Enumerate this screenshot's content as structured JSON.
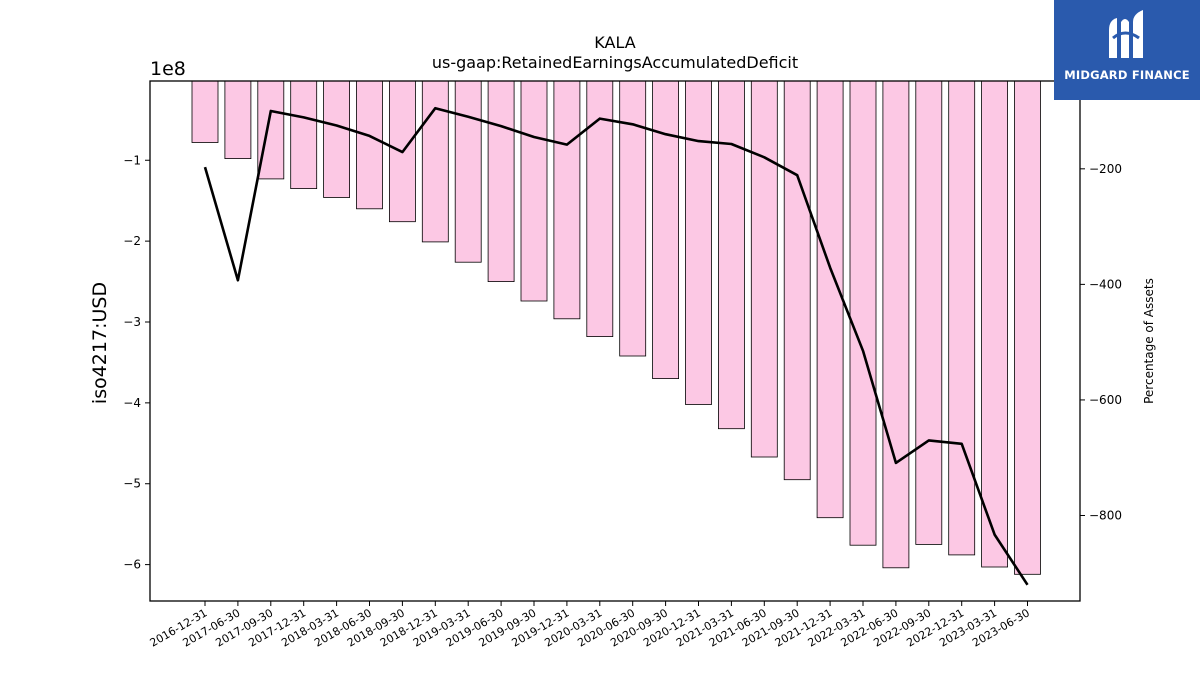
{
  "chart_data": {
    "type": "bar",
    "title": "KALA",
    "subtitle": "us-gaap:RetainedEarningsAccumulatedDeficit",
    "ylabel": "iso4217:USD",
    "y2label": "Percentage of Assets",
    "y_offset_label": "1e8",
    "categories": [
      "2016-12-31",
      "2017-06-30",
      "2017-09-30",
      "2017-12-31",
      "2018-03-31",
      "2018-06-30",
      "2018-09-30",
      "2018-12-31",
      "2019-03-31",
      "2019-06-30",
      "2019-09-30",
      "2019-12-31",
      "2020-03-31",
      "2020-06-30",
      "2020-09-30",
      "2020-12-31",
      "2021-03-31",
      "2021-06-30",
      "2021-09-30",
      "2021-12-31",
      "2022-03-31",
      "2022-06-30",
      "2022-09-30",
      "2022-12-31",
      "2023-03-31",
      "2023-06-30"
    ],
    "series": [
      {
        "axis": "left",
        "kind": "bar",
        "color": "#fcc8e4",
        "values": [
          -78000000.0,
          -98000000.0,
          -123000000.0,
          -135000000.0,
          -146000000.0,
          -160000000.0,
          -176000000.0,
          -201000000.0,
          -226000000.0,
          -250000000.0,
          -274000000.0,
          -296000000.0,
          -318000000.0,
          -342000000.0,
          -370000000.0,
          -402000000.0,
          -432000000.0,
          -467000000.0,
          -495000000.0,
          -542000000.0,
          -576000000.0,
          -604000000.0,
          -575000000.0,
          -588000000.0,
          -603000000.0,
          -612000000.0
        ]
      },
      {
        "axis": "right",
        "kind": "line",
        "color": "#000000",
        "values": [
          -197,
          -393,
          -100,
          -111,
          -125,
          -143,
          -171,
          -95,
          -110,
          -126,
          -145,
          -158,
          -113,
          -123,
          -140,
          -152,
          -157,
          -180,
          -211,
          -371,
          -515,
          -709,
          -670,
          -676,
          -833,
          -920
        ]
      }
    ],
    "ylim": [
      -645000000.0,
      -2000000.0
    ],
    "y_ticks": [
      -600000000.0,
      -500000000.0,
      -400000000.0,
      -300000000.0,
      -200000000.0,
      -100000000.0
    ],
    "y_tick_labels": [
      "−6",
      "−5",
      "−4",
      "−3",
      "−2",
      "−1"
    ],
    "y2lim": [
      -948,
      -48
    ],
    "y2_ticks": [
      -800,
      -600,
      -400,
      -200
    ],
    "y2_tick_labels": [
      "−800",
      "−600",
      "−400",
      "−200"
    ],
    "grid": false
  },
  "logo": {
    "text": "MIDGARD FINANCE"
  }
}
